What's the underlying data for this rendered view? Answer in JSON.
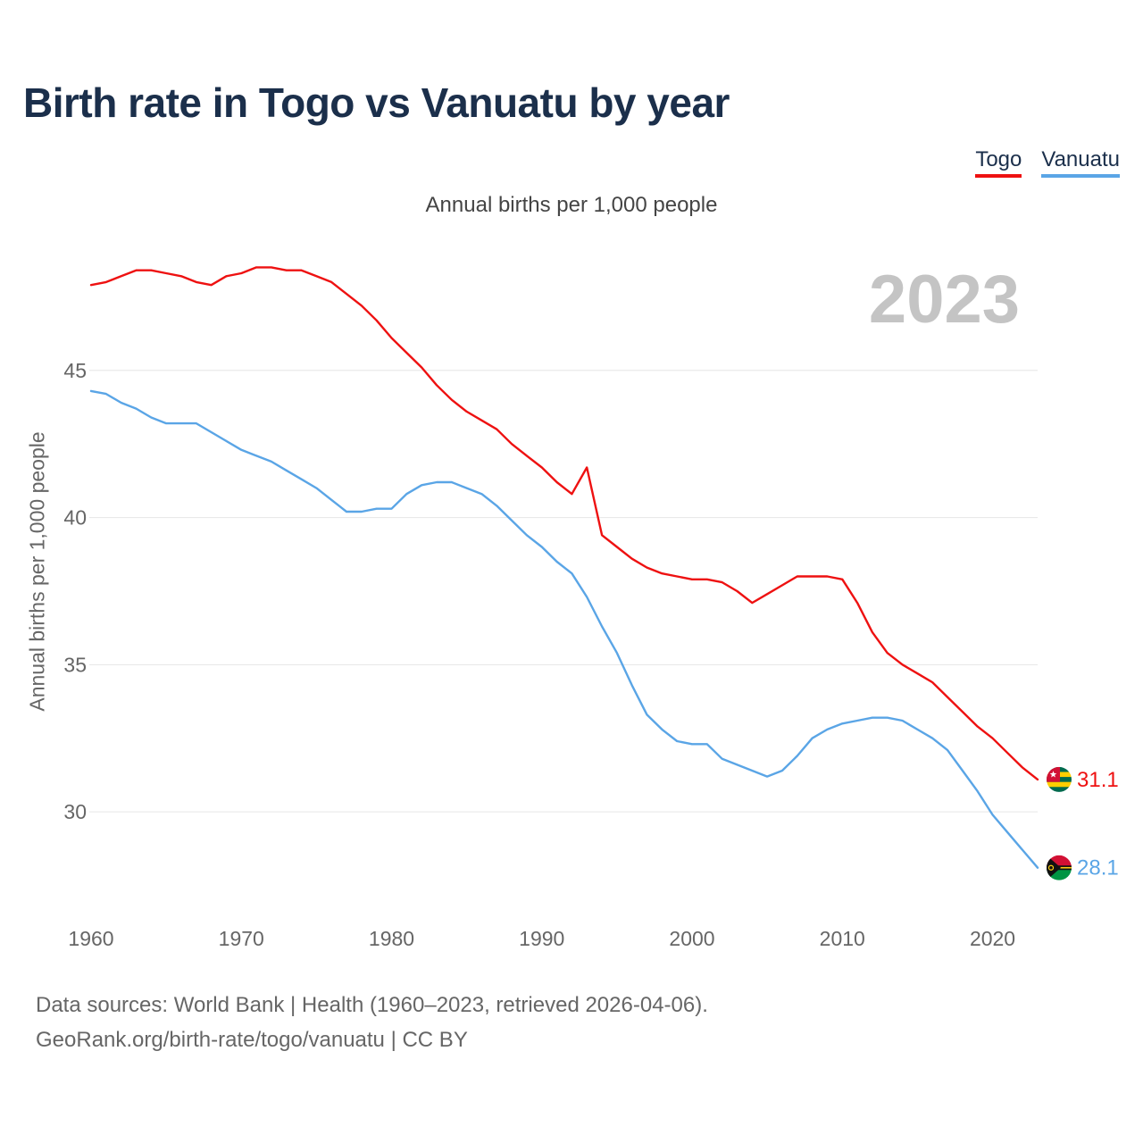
{
  "title": "Birth rate in Togo vs Vanuatu by year",
  "subtitle": "Annual births per 1,000 people",
  "year_display": "2023",
  "legend": [
    {
      "label": "Togo",
      "color": "#ee1111"
    },
    {
      "label": "Vanuatu",
      "color": "#5aa5e6"
    }
  ],
  "source": {
    "line1": "Data sources: World Bank | Health (1960–2023, retrieved 2026-04-06).",
    "line2": "GeoRank.org/birth-rate/togo/vanuatu | CC BY"
  },
  "chart_data": {
    "type": "line",
    "title": "Birth rate in Togo vs Vanuatu by year",
    "xlabel": "",
    "ylabel": "Annual births per 1,000 people",
    "xlim": [
      1960,
      2023
    ],
    "ylim": [
      27,
      50
    ],
    "x_ticks": [
      "1960",
      "1970",
      "1980",
      "1990",
      "2000",
      "2010",
      "2020"
    ],
    "y_ticks": [
      "30",
      "35",
      "40",
      "45"
    ],
    "grid": true,
    "x": [
      1960,
      1961,
      1962,
      1963,
      1964,
      1965,
      1966,
      1967,
      1968,
      1969,
      1970,
      1971,
      1972,
      1973,
      1974,
      1975,
      1976,
      1977,
      1978,
      1979,
      1980,
      1981,
      1982,
      1983,
      1984,
      1985,
      1986,
      1987,
      1988,
      1989,
      1990,
      1991,
      1992,
      1993,
      1994,
      1995,
      1996,
      1997,
      1998,
      1999,
      2000,
      2001,
      2002,
      2003,
      2004,
      2005,
      2006,
      2007,
      2008,
      2009,
      2010,
      2011,
      2012,
      2013,
      2014,
      2015,
      2016,
      2017,
      2018,
      2019,
      2020,
      2021,
      2022,
      2023
    ],
    "series": [
      {
        "name": "Togo",
        "color": "#ee1111",
        "end_label": "31.1",
        "values": [
          47.9,
          48.0,
          48.2,
          48.4,
          48.4,
          48.3,
          48.2,
          48.0,
          47.9,
          48.2,
          48.3,
          48.5,
          48.5,
          48.4,
          48.4,
          48.2,
          48.0,
          47.6,
          47.2,
          46.7,
          46.1,
          45.6,
          45.1,
          44.5,
          44.0,
          43.6,
          43.3,
          43.0,
          42.5,
          42.1,
          41.7,
          41.2,
          40.8,
          41.7,
          39.4,
          39.0,
          38.6,
          38.3,
          38.1,
          38.0,
          37.9,
          37.9,
          37.8,
          37.5,
          37.1,
          37.4,
          37.7,
          38.0,
          38.0,
          38.0,
          37.9,
          37.1,
          36.1,
          35.4,
          35.0,
          34.7,
          34.4,
          33.9,
          33.4,
          32.9,
          32.5,
          32.0,
          31.5,
          31.1
        ]
      },
      {
        "name": "Vanuatu",
        "color": "#5aa5e6",
        "end_label": "28.1",
        "values": [
          44.3,
          44.2,
          43.9,
          43.7,
          43.4,
          43.2,
          43.2,
          43.2,
          42.9,
          42.6,
          42.3,
          42.1,
          41.9,
          41.6,
          41.3,
          41.0,
          40.6,
          40.2,
          40.2,
          40.3,
          40.3,
          40.8,
          41.1,
          41.2,
          41.2,
          41.0,
          40.8,
          40.4,
          39.9,
          39.4,
          39.0,
          38.5,
          38.1,
          37.3,
          36.3,
          35.4,
          34.3,
          33.3,
          32.8,
          32.4,
          32.3,
          32.3,
          31.8,
          31.6,
          31.4,
          31.2,
          31.4,
          31.9,
          32.5,
          32.8,
          33.0,
          33.1,
          33.2,
          33.2,
          33.1,
          32.8,
          32.5,
          32.1,
          31.4,
          30.7,
          29.9,
          29.3,
          28.7,
          28.1
        ]
      }
    ]
  }
}
